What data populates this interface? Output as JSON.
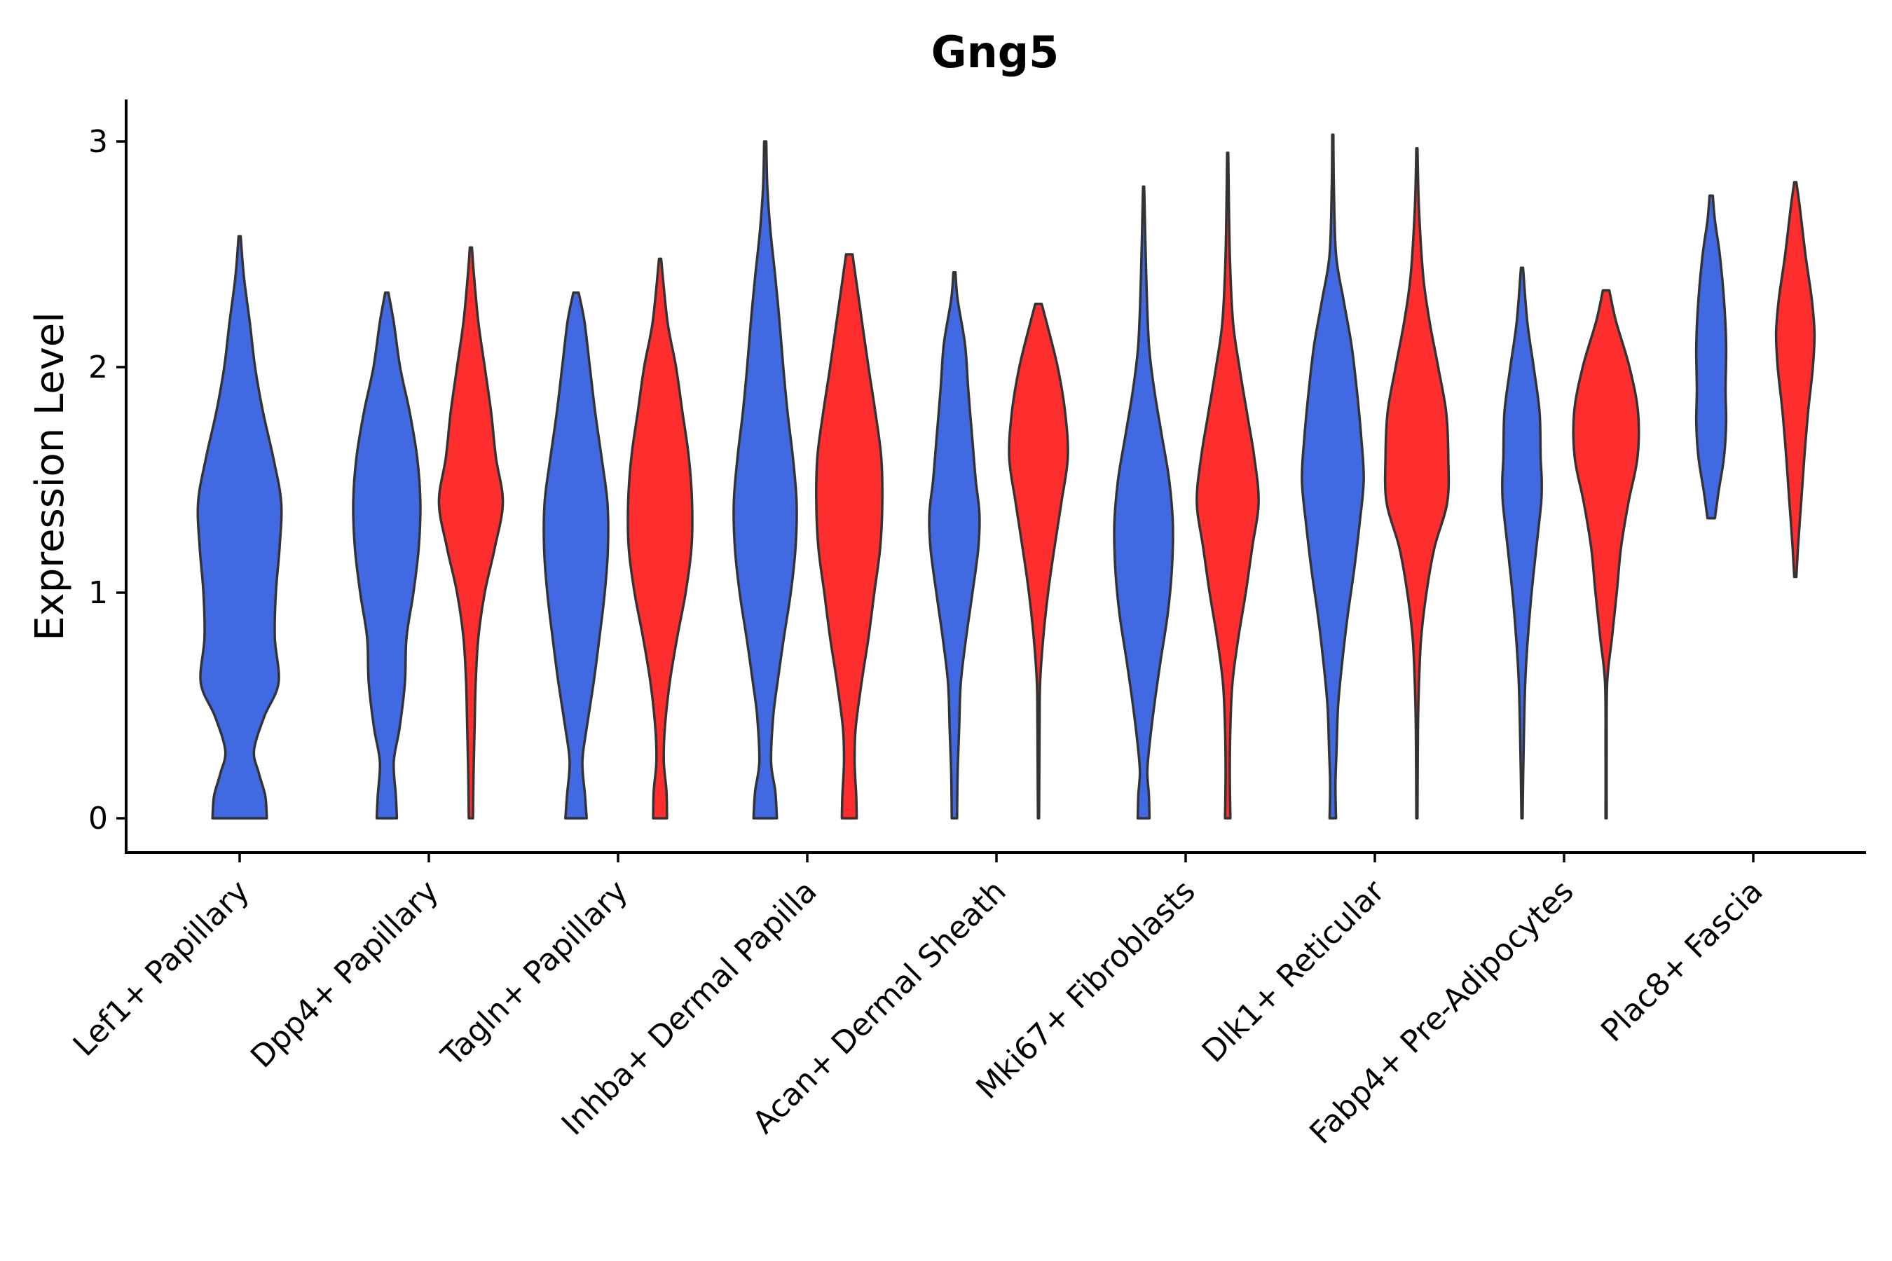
{
  "chart_data": {
    "type": "violin",
    "title": "Gng5",
    "xlabel": "",
    "ylabel": "Expression Level",
    "ylim": [
      -0.15,
      3.2
    ],
    "yticks": [
      "0",
      "1",
      "2",
      "3"
    ],
    "categories": [
      "Lef1+ Papillary",
      "Dpp4+ Papillary",
      "Tagln+ Papillary",
      "Inhba+ Dermal Papilla",
      "Acan+ Dermal Sheath",
      "Mki67+ Fibroblasts",
      "Dlk1+ Reticular",
      "Fabp4+ Pre-Adipocytes",
      "Plac8+ Fascia"
    ],
    "series": [
      {
        "name": "group-blue",
        "color": "#4169E1",
        "violins": [
          {
            "category": 0,
            "profile": [
              [
                0,
                0.51
              ],
              [
                0.1,
                0.48
              ],
              [
                0.2,
                0.36
              ],
              [
                0.3,
                0.27
              ],
              [
                0.45,
                0.46
              ],
              [
                0.6,
                0.73
              ],
              [
                0.8,
                0.66
              ],
              [
                1.0,
                0.68
              ],
              [
                1.2,
                0.75
              ],
              [
                1.4,
                0.78
              ],
              [
                1.6,
                0.63
              ],
              [
                1.8,
                0.44
              ],
              [
                2.0,
                0.29
              ],
              [
                2.2,
                0.19
              ],
              [
                2.4,
                0.08
              ],
              [
                2.58,
                0.02
              ]
            ]
          },
          {
            "category": 1,
            "profile": [
              [
                0,
                0.19
              ],
              [
                0.1,
                0.17
              ],
              [
                0.25,
                0.13
              ],
              [
                0.4,
                0.24
              ],
              [
                0.6,
                0.34
              ],
              [
                0.8,
                0.37
              ],
              [
                1.0,
                0.5
              ],
              [
                1.2,
                0.6
              ],
              [
                1.4,
                0.63
              ],
              [
                1.6,
                0.57
              ],
              [
                1.8,
                0.43
              ],
              [
                2.0,
                0.25
              ],
              [
                2.2,
                0.13
              ],
              [
                2.33,
                0.03
              ]
            ]
          },
          {
            "category": 2,
            "profile": [
              [
                0,
                0.2
              ],
              [
                0.1,
                0.17
              ],
              [
                0.25,
                0.12
              ],
              [
                0.4,
                0.2
              ],
              [
                0.6,
                0.33
              ],
              [
                0.8,
                0.44
              ],
              [
                1.0,
                0.54
              ],
              [
                1.2,
                0.6
              ],
              [
                1.4,
                0.59
              ],
              [
                1.6,
                0.48
              ],
              [
                1.8,
                0.36
              ],
              [
                2.0,
                0.26
              ],
              [
                2.2,
                0.16
              ],
              [
                2.33,
                0.05
              ]
            ]
          },
          {
            "category": 3,
            "profile": [
              [
                0,
                0.22
              ],
              [
                0.12,
                0.19
              ],
              [
                0.25,
                0.11
              ],
              [
                0.45,
                0.15
              ],
              [
                0.6,
                0.23
              ],
              [
                0.8,
                0.35
              ],
              [
                1.0,
                0.48
              ],
              [
                1.2,
                0.57
              ],
              [
                1.4,
                0.59
              ],
              [
                1.6,
                0.52
              ],
              [
                1.8,
                0.42
              ],
              [
                2.0,
                0.34
              ],
              [
                2.2,
                0.27
              ],
              [
                2.4,
                0.19
              ],
              [
                2.6,
                0.1
              ],
              [
                2.8,
                0.04
              ],
              [
                3.0,
                0.02
              ]
            ]
          },
          {
            "category": 4,
            "profile": [
              [
                0,
                0.05
              ],
              [
                0.2,
                0.06
              ],
              [
                0.4,
                0.09
              ],
              [
                0.6,
                0.12
              ],
              [
                0.8,
                0.22
              ],
              [
                1.0,
                0.34
              ],
              [
                1.2,
                0.45
              ],
              [
                1.35,
                0.47
              ],
              [
                1.5,
                0.4
              ],
              [
                1.7,
                0.33
              ],
              [
                1.9,
                0.26
              ],
              [
                2.1,
                0.2
              ],
              [
                2.3,
                0.06
              ],
              [
                2.42,
                0.02
              ]
            ]
          },
          {
            "category": 5,
            "profile": [
              [
                0,
                0.11
              ],
              [
                0.1,
                0.1
              ],
              [
                0.2,
                0.07
              ],
              [
                0.3,
                0.1
              ],
              [
                0.5,
                0.2
              ],
              [
                0.7,
                0.32
              ],
              [
                0.9,
                0.45
              ],
              [
                1.1,
                0.53
              ],
              [
                1.3,
                0.55
              ],
              [
                1.5,
                0.48
              ],
              [
                1.7,
                0.34
              ],
              [
                1.9,
                0.2
              ],
              [
                2.1,
                0.1
              ],
              [
                2.4,
                0.05
              ],
              [
                2.8,
                0.01
              ]
            ]
          },
          {
            "category": 6,
            "profile": [
              [
                0,
                0.06
              ],
              [
                0.15,
                0.05
              ],
              [
                0.3,
                0.07
              ],
              [
                0.5,
                0.1
              ],
              [
                0.7,
                0.18
              ],
              [
                0.9,
                0.28
              ],
              [
                1.1,
                0.4
              ],
              [
                1.3,
                0.5
              ],
              [
                1.5,
                0.58
              ],
              [
                1.7,
                0.53
              ],
              [
                1.9,
                0.45
              ],
              [
                2.1,
                0.35
              ],
              [
                2.3,
                0.2
              ],
              [
                2.5,
                0.06
              ],
              [
                2.8,
                0.02
              ],
              [
                3.03,
                0.01
              ]
            ]
          },
          {
            "category": 7,
            "profile": [
              [
                0,
                0.01
              ],
              [
                0.3,
                0.03
              ],
              [
                0.6,
                0.06
              ],
              [
                0.8,
                0.11
              ],
              [
                1.0,
                0.18
              ],
              [
                1.2,
                0.27
              ],
              [
                1.4,
                0.36
              ],
              [
                1.5,
                0.37
              ],
              [
                1.6,
                0.35
              ],
              [
                1.8,
                0.33
              ],
              [
                2.0,
                0.22
              ],
              [
                2.2,
                0.1
              ],
              [
                2.44,
                0.02
              ]
            ]
          },
          {
            "category": 8,
            "profile": [
              [
                1.33,
                0.07
              ],
              [
                1.45,
                0.14
              ],
              [
                1.6,
                0.24
              ],
              [
                1.75,
                0.28
              ],
              [
                1.9,
                0.27
              ],
              [
                2.1,
                0.28
              ],
              [
                2.3,
                0.24
              ],
              [
                2.5,
                0.16
              ],
              [
                2.65,
                0.07
              ],
              [
                2.76,
                0.03
              ]
            ]
          }
        ]
      },
      {
        "name": "group-red",
        "color": "#FF2E2E",
        "violins": [
          {
            "category": 1,
            "profile": [
              [
                0,
                0.04
              ],
              [
                0.2,
                0.05
              ],
              [
                0.4,
                0.07
              ],
              [
                0.6,
                0.09
              ],
              [
                0.8,
                0.14
              ],
              [
                1.0,
                0.26
              ],
              [
                1.2,
                0.45
              ],
              [
                1.4,
                0.6
              ],
              [
                1.6,
                0.47
              ],
              [
                1.8,
                0.38
              ],
              [
                2.0,
                0.26
              ],
              [
                2.2,
                0.14
              ],
              [
                2.4,
                0.06
              ],
              [
                2.53,
                0.02
              ]
            ]
          },
          {
            "category": 2,
            "profile": [
              [
                0,
                0.13
              ],
              [
                0.12,
                0.12
              ],
              [
                0.25,
                0.07
              ],
              [
                0.4,
                0.09
              ],
              [
                0.6,
                0.18
              ],
              [
                0.8,
                0.32
              ],
              [
                1.0,
                0.48
              ],
              [
                1.2,
                0.59
              ],
              [
                1.4,
                0.6
              ],
              [
                1.6,
                0.54
              ],
              [
                1.8,
                0.42
              ],
              [
                2.0,
                0.3
              ],
              [
                2.2,
                0.14
              ],
              [
                2.48,
                0.02
              ]
            ]
          },
          {
            "category": 3,
            "profile": [
              [
                0,
                0.14
              ],
              [
                0.1,
                0.13
              ],
              [
                0.25,
                0.1
              ],
              [
                0.4,
                0.12
              ],
              [
                0.6,
                0.23
              ],
              [
                0.8,
                0.36
              ],
              [
                1.0,
                0.47
              ],
              [
                1.2,
                0.58
              ],
              [
                1.4,
                0.62
              ],
              [
                1.6,
                0.6
              ],
              [
                1.8,
                0.49
              ],
              [
                2.0,
                0.36
              ],
              [
                2.2,
                0.24
              ],
              [
                2.4,
                0.12
              ],
              [
                2.5,
                0.06
              ]
            ]
          },
          {
            "category": 4,
            "profile": [
              [
                0,
                0.01
              ],
              [
                0.4,
                0.02
              ],
              [
                0.6,
                0.03
              ],
              [
                0.8,
                0.09
              ],
              [
                1.0,
                0.18
              ],
              [
                1.2,
                0.3
              ],
              [
                1.4,
                0.43
              ],
              [
                1.6,
                0.55
              ],
              [
                1.8,
                0.5
              ],
              [
                2.0,
                0.36
              ],
              [
                2.2,
                0.15
              ],
              [
                2.28,
                0.06
              ]
            ]
          },
          {
            "category": 5,
            "profile": [
              [
                0,
                0.05
              ],
              [
                0.2,
                0.04
              ],
              [
                0.4,
                0.05
              ],
              [
                0.6,
                0.09
              ],
              [
                0.8,
                0.2
              ],
              [
                1.0,
                0.34
              ],
              [
                1.2,
                0.46
              ],
              [
                1.4,
                0.58
              ],
              [
                1.6,
                0.5
              ],
              [
                1.8,
                0.36
              ],
              [
                2.0,
                0.22
              ],
              [
                2.2,
                0.1
              ],
              [
                2.5,
                0.04
              ],
              [
                2.95,
                0.01
              ]
            ]
          },
          {
            "category": 6,
            "profile": [
              [
                0,
                0.01
              ],
              [
                0.4,
                0.02
              ],
              [
                0.6,
                0.04
              ],
              [
                0.8,
                0.08
              ],
              [
                1.0,
                0.18
              ],
              [
                1.2,
                0.33
              ],
              [
                1.4,
                0.57
              ],
              [
                1.6,
                0.59
              ],
              [
                1.8,
                0.55
              ],
              [
                2.0,
                0.4
              ],
              [
                2.2,
                0.24
              ],
              [
                2.4,
                0.12
              ],
              [
                2.7,
                0.04
              ],
              [
                2.97,
                0.01
              ]
            ]
          },
          {
            "category": 7,
            "profile": [
              [
                0,
                0.01
              ],
              [
                0.3,
                0.01
              ],
              [
                0.6,
                0.02
              ],
              [
                0.8,
                0.11
              ],
              [
                1.0,
                0.2
              ],
              [
                1.2,
                0.28
              ],
              [
                1.4,
                0.42
              ],
              [
                1.6,
                0.59
              ],
              [
                1.8,
                0.6
              ],
              [
                2.0,
                0.44
              ],
              [
                2.2,
                0.19
              ],
              [
                2.34,
                0.06
              ]
            ]
          },
          {
            "category": 8,
            "profile": [
              [
                1.07,
                0.02
              ],
              [
                1.2,
                0.05
              ],
              [
                1.4,
                0.11
              ],
              [
                1.6,
                0.17
              ],
              [
                1.8,
                0.24
              ],
              [
                2.0,
                0.33
              ],
              [
                2.15,
                0.36
              ],
              [
                2.3,
                0.31
              ],
              [
                2.5,
                0.19
              ],
              [
                2.7,
                0.09
              ],
              [
                2.82,
                0.02
              ]
            ]
          }
        ]
      }
    ]
  }
}
